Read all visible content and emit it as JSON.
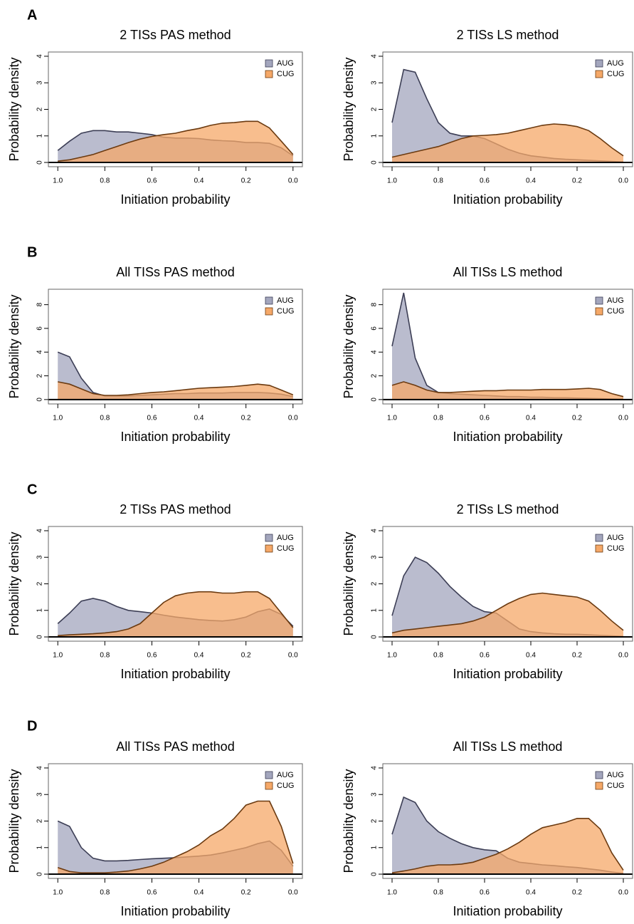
{
  "panel_labels": [
    "A",
    "B",
    "C",
    "D"
  ],
  "chart_data": [
    {
      "type": "density",
      "title": "2 TISs PAS method",
      "xlabel": "Initiation probability",
      "ylabel": "Probability density",
      "x": [
        1.0,
        0.95,
        0.9,
        0.85,
        0.8,
        0.75,
        0.7,
        0.65,
        0.6,
        0.55,
        0.5,
        0.45,
        0.4,
        0.35,
        0.3,
        0.25,
        0.2,
        0.15,
        0.1,
        0.05,
        0.0
      ],
      "series": [
        {
          "name": "AUG",
          "color": "#a3a6bd",
          "edgecolor": "#3c3e55",
          "values": [
            0.45,
            0.8,
            1.1,
            1.2,
            1.2,
            1.15,
            1.15,
            1.1,
            1.05,
            0.95,
            0.92,
            0.92,
            0.9,
            0.85,
            0.82,
            0.8,
            0.75,
            0.75,
            0.72,
            0.55,
            0.25
          ]
        },
        {
          "name": "CUG",
          "color": "#f5a868",
          "edgecolor": "#6b3a10",
          "values": [
            0.05,
            0.1,
            0.2,
            0.3,
            0.45,
            0.6,
            0.75,
            0.88,
            0.98,
            1.05,
            1.1,
            1.2,
            1.28,
            1.4,
            1.48,
            1.5,
            1.55,
            1.55,
            1.3,
            0.8,
            0.3
          ]
        }
      ],
      "xlim": [
        1.04,
        -0.04
      ],
      "ylim": [
        -0.16,
        4.16
      ],
      "xticks": [
        {
          "value": 1,
          "label": "1.0"
        },
        0.8,
        0.6,
        0.4,
        0.2,
        {
          "value": 0,
          "label": "0.0"
        }
      ],
      "yticks": [
        0,
        1,
        2,
        3,
        4
      ],
      "legend": "topright"
    },
    {
      "type": "density",
      "title": "2 TISs LS method",
      "xlabel": "Initiation probability",
      "ylabel": "Probability density",
      "x": [
        1.0,
        0.95,
        0.9,
        0.85,
        0.8,
        0.75,
        0.7,
        0.65,
        0.6,
        0.55,
        0.5,
        0.45,
        0.4,
        0.35,
        0.3,
        0.25,
        0.2,
        0.15,
        0.1,
        0.05,
        0.0
      ],
      "series": [
        {
          "name": "AUG",
          "color": "#a3a6bd",
          "edgecolor": "#3c3e55",
          "values": [
            1.5,
            3.5,
            3.4,
            2.4,
            1.5,
            1.1,
            1.0,
            1.0,
            0.9,
            0.7,
            0.5,
            0.35,
            0.25,
            0.2,
            0.15,
            0.12,
            0.1,
            0.08,
            0.06,
            0.04,
            0.02
          ]
        },
        {
          "name": "CUG",
          "color": "#f5a868",
          "edgecolor": "#6b3a10",
          "values": [
            0.2,
            0.3,
            0.4,
            0.5,
            0.6,
            0.75,
            0.9,
            1.0,
            1.02,
            1.05,
            1.1,
            1.2,
            1.3,
            1.4,
            1.45,
            1.42,
            1.35,
            1.2,
            0.9,
            0.55,
            0.25
          ]
        }
      ],
      "xlim": [
        1.04,
        -0.04
      ],
      "ylim": [
        -0.16,
        4.16
      ],
      "xticks": [
        {
          "value": 1,
          "label": "1.0"
        },
        0.8,
        0.6,
        0.4,
        0.2,
        {
          "value": 0,
          "label": "0.0"
        }
      ],
      "yticks": [
        0,
        1,
        2,
        3,
        4
      ],
      "legend": "topright"
    },
    {
      "type": "density",
      "title": "All TISs PAS method",
      "xlabel": "Initiation probability",
      "ylabel": "Probability density",
      "x": [
        1.0,
        0.95,
        0.9,
        0.85,
        0.8,
        0.75,
        0.7,
        0.65,
        0.6,
        0.55,
        0.5,
        0.45,
        0.4,
        0.35,
        0.3,
        0.25,
        0.2,
        0.15,
        0.1,
        0.05,
        0.0
      ],
      "series": [
        {
          "name": "AUG",
          "color": "#a3a6bd",
          "edgecolor": "#3c3e55",
          "values": [
            4.0,
            3.6,
            1.8,
            0.6,
            0.3,
            0.3,
            0.3,
            0.35,
            0.4,
            0.45,
            0.5,
            0.5,
            0.55,
            0.55,
            0.55,
            0.6,
            0.6,
            0.6,
            0.55,
            0.45,
            0.25
          ]
        },
        {
          "name": "CUG",
          "color": "#f5a868",
          "edgecolor": "#6b3a10",
          "values": [
            1.5,
            1.3,
            0.9,
            0.5,
            0.35,
            0.35,
            0.4,
            0.5,
            0.6,
            0.65,
            0.75,
            0.85,
            0.95,
            1.0,
            1.05,
            1.1,
            1.2,
            1.3,
            1.2,
            0.8,
            0.4
          ]
        }
      ],
      "xlim": [
        1.04,
        -0.04
      ],
      "ylim": [
        -0.37,
        9.3
      ],
      "xticks": [
        {
          "value": 1,
          "label": "1.0"
        },
        0.8,
        0.6,
        0.4,
        0.2,
        {
          "value": 0,
          "label": "0.0"
        }
      ],
      "yticks": [
        0,
        2,
        4,
        6,
        8
      ],
      "legend": "topright"
    },
    {
      "type": "density",
      "title": "All TISs LS method",
      "xlabel": "Initiation probability",
      "ylabel": "Probability density",
      "x": [
        1.0,
        0.95,
        0.9,
        0.85,
        0.8,
        0.75,
        0.7,
        0.65,
        0.6,
        0.55,
        0.5,
        0.45,
        0.4,
        0.35,
        0.3,
        0.25,
        0.2,
        0.15,
        0.1,
        0.05,
        0.0
      ],
      "series": [
        {
          "name": "AUG",
          "color": "#a3a6bd",
          "edgecolor": "#3c3e55",
          "values": [
            4.5,
            9.0,
            3.5,
            1.2,
            0.6,
            0.5,
            0.45,
            0.4,
            0.35,
            0.3,
            0.25,
            0.25,
            0.2,
            0.2,
            0.15,
            0.15,
            0.12,
            0.1,
            0.08,
            0.05,
            0.03
          ]
        },
        {
          "name": "CUG",
          "color": "#f5a868",
          "edgecolor": "#6b3a10",
          "values": [
            1.2,
            1.5,
            1.2,
            0.8,
            0.6,
            0.6,
            0.65,
            0.7,
            0.75,
            0.75,
            0.8,
            0.8,
            0.8,
            0.85,
            0.85,
            0.85,
            0.9,
            0.95,
            0.85,
            0.5,
            0.25
          ]
        }
      ],
      "xlim": [
        1.04,
        -0.04
      ],
      "ylim": [
        -0.37,
        9.3
      ],
      "xticks": [
        {
          "value": 1,
          "label": "1.0"
        },
        0.8,
        0.6,
        0.4,
        0.2,
        {
          "value": 0,
          "label": "0.0"
        }
      ],
      "yticks": [
        0,
        2,
        4,
        6,
        8
      ],
      "legend": "topright"
    },
    {
      "type": "density",
      "title": "2 TISs PAS method",
      "xlabel": "Initiation probability",
      "ylabel": "Probability density",
      "x": [
        1.0,
        0.95,
        0.9,
        0.85,
        0.8,
        0.75,
        0.7,
        0.65,
        0.6,
        0.55,
        0.5,
        0.45,
        0.4,
        0.35,
        0.3,
        0.25,
        0.2,
        0.15,
        0.1,
        0.05,
        0.0
      ],
      "series": [
        {
          "name": "AUG",
          "color": "#a3a6bd",
          "edgecolor": "#3c3e55",
          "values": [
            0.5,
            0.9,
            1.35,
            1.45,
            1.35,
            1.15,
            1.0,
            0.95,
            0.9,
            0.82,
            0.75,
            0.7,
            0.65,
            0.62,
            0.6,
            0.65,
            0.75,
            0.95,
            1.05,
            0.85,
            0.4
          ]
        },
        {
          "name": "CUG",
          "color": "#f5a868",
          "edgecolor": "#6b3a10",
          "values": [
            0.05,
            0.08,
            0.1,
            0.12,
            0.15,
            0.2,
            0.3,
            0.5,
            0.9,
            1.3,
            1.55,
            1.65,
            1.7,
            1.7,
            1.65,
            1.65,
            1.7,
            1.7,
            1.45,
            0.9,
            0.35
          ]
        }
      ],
      "xlim": [
        1.04,
        -0.04
      ],
      "ylim": [
        -0.16,
        4.16
      ],
      "xticks": [
        {
          "value": 1,
          "label": "1.0"
        },
        0.8,
        0.6,
        0.4,
        0.2,
        {
          "value": 0,
          "label": "0.0"
        }
      ],
      "yticks": [
        0,
        1,
        2,
        3,
        4
      ],
      "legend": "topright"
    },
    {
      "type": "density",
      "title": "2 TISs LS method",
      "xlabel": "Initiation probability",
      "ylabel": "Probability density",
      "x": [
        1.0,
        0.95,
        0.9,
        0.85,
        0.8,
        0.75,
        0.7,
        0.65,
        0.6,
        0.55,
        0.5,
        0.45,
        0.4,
        0.35,
        0.3,
        0.25,
        0.2,
        0.15,
        0.1,
        0.05,
        0.0
      ],
      "series": [
        {
          "name": "AUG",
          "color": "#a3a6bd",
          "edgecolor": "#3c3e55",
          "values": [
            0.8,
            2.3,
            3.0,
            2.8,
            2.4,
            1.9,
            1.5,
            1.15,
            0.95,
            0.9,
            0.6,
            0.3,
            0.2,
            0.15,
            0.12,
            0.1,
            0.1,
            0.08,
            0.06,
            0.04,
            0.02
          ]
        },
        {
          "name": "CUG",
          "color": "#f5a868",
          "edgecolor": "#6b3a10",
          "values": [
            0.15,
            0.25,
            0.3,
            0.35,
            0.4,
            0.45,
            0.5,
            0.6,
            0.75,
            1.0,
            1.25,
            1.45,
            1.6,
            1.65,
            1.6,
            1.55,
            1.5,
            1.35,
            1.0,
            0.6,
            0.25
          ]
        }
      ],
      "xlim": [
        1.04,
        -0.04
      ],
      "ylim": [
        -0.16,
        4.16
      ],
      "xticks": [
        {
          "value": 1,
          "label": "1.0"
        },
        0.8,
        0.6,
        0.4,
        0.2,
        {
          "value": 0,
          "label": "0.0"
        }
      ],
      "yticks": [
        0,
        1,
        2,
        3,
        4
      ],
      "legend": "topright"
    },
    {
      "type": "density",
      "title": "All TISs PAS method",
      "xlabel": "Initiation probability",
      "ylabel": "Probability density",
      "x": [
        1.0,
        0.95,
        0.9,
        0.85,
        0.8,
        0.75,
        0.7,
        0.65,
        0.6,
        0.55,
        0.5,
        0.45,
        0.4,
        0.35,
        0.3,
        0.25,
        0.2,
        0.15,
        0.1,
        0.05,
        0.0
      ],
      "series": [
        {
          "name": "AUG",
          "color": "#a3a6bd",
          "edgecolor": "#3c3e55",
          "values": [
            2.0,
            1.8,
            1.0,
            0.6,
            0.5,
            0.5,
            0.52,
            0.55,
            0.58,
            0.6,
            0.62,
            0.65,
            0.68,
            0.72,
            0.8,
            0.9,
            1.0,
            1.15,
            1.25,
            0.9,
            0.3
          ]
        },
        {
          "name": "CUG",
          "color": "#f5a868",
          "edgecolor": "#6b3a10",
          "values": [
            0.25,
            0.1,
            0.05,
            0.05,
            0.05,
            0.08,
            0.12,
            0.2,
            0.3,
            0.45,
            0.65,
            0.85,
            1.1,
            1.45,
            1.7,
            2.1,
            2.6,
            2.75,
            2.75,
            1.8,
            0.4
          ]
        }
      ],
      "xlim": [
        1.04,
        -0.04
      ],
      "ylim": [
        -0.16,
        4.16
      ],
      "xticks": [
        {
          "value": 1,
          "label": "1.0"
        },
        0.8,
        0.6,
        0.4,
        0.2,
        {
          "value": 0,
          "label": "0.0"
        }
      ],
      "yticks": [
        0,
        1,
        2,
        3,
        4
      ],
      "legend": "topright"
    },
    {
      "type": "density",
      "title": "All TISs LS method",
      "xlabel": "Initiation probability",
      "ylabel": "Probability density",
      "x": [
        1.0,
        0.95,
        0.9,
        0.85,
        0.8,
        0.75,
        0.7,
        0.65,
        0.6,
        0.55,
        0.5,
        0.45,
        0.4,
        0.35,
        0.3,
        0.25,
        0.2,
        0.15,
        0.1,
        0.05,
        0.0
      ],
      "series": [
        {
          "name": "AUG",
          "color": "#a3a6bd",
          "edgecolor": "#3c3e55",
          "values": [
            1.5,
            2.9,
            2.7,
            2.0,
            1.6,
            1.35,
            1.15,
            1.0,
            0.92,
            0.88,
            0.6,
            0.45,
            0.4,
            0.35,
            0.32,
            0.28,
            0.25,
            0.2,
            0.15,
            0.08,
            0.03
          ]
        },
        {
          "name": "CUG",
          "color": "#f5a868",
          "edgecolor": "#6b3a10",
          "values": [
            0.05,
            0.12,
            0.2,
            0.3,
            0.35,
            0.35,
            0.38,
            0.45,
            0.6,
            0.75,
            0.95,
            1.2,
            1.5,
            1.75,
            1.85,
            1.95,
            2.1,
            2.1,
            1.7,
            0.8,
            0.15
          ]
        }
      ],
      "xlim": [
        1.04,
        -0.04
      ],
      "ylim": [
        -0.16,
        4.16
      ],
      "xticks": [
        {
          "value": 1,
          "label": "1.0"
        },
        0.8,
        0.6,
        0.4,
        0.2,
        {
          "value": 0,
          "label": "0.0"
        }
      ],
      "yticks": [
        0,
        1,
        2,
        3,
        4
      ],
      "legend": "topright"
    }
  ]
}
